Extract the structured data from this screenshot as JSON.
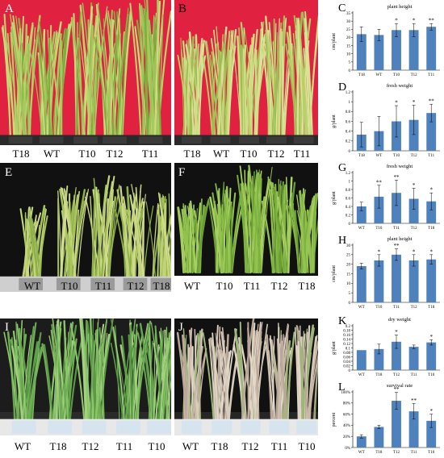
{
  "panels": {
    "A": {
      "letter": "A",
      "lanes": [
        "T18",
        "WT",
        "T10",
        "T12",
        "T11"
      ]
    },
    "B": {
      "letter": "B",
      "lanes": [
        "T18",
        "WT",
        "T10",
        "T12",
        "T11"
      ]
    },
    "E": {
      "letter": "E",
      "lanes": [
        "WT",
        "T10",
        "T11",
        "T12",
        "T18"
      ]
    },
    "F": {
      "letter": "F",
      "lanes": [
        "T10",
        "T11",
        "T12",
        "T18"
      ]
    },
    "F_first": {
      "lane": "WT"
    },
    "I": {
      "letter": "I",
      "lanes": [
        "WT",
        "T18",
        "T12",
        "T11",
        "T10"
      ]
    },
    "J": {
      "letter": "J",
      "lanes": [
        "WT",
        "T18",
        "T12",
        "T11",
        "T10"
      ]
    }
  },
  "colors": {
    "bar": "#4f81bd",
    "red_bg": "#e0213f",
    "dark_bg": "#111111",
    "leaf": "#8db84a"
  },
  "chart_data": [
    {
      "id": "C",
      "letter": "C",
      "type": "bar",
      "title": "plant height",
      "ylabel": "cm/plant",
      "categories": [
        "T18",
        "WT",
        "T10",
        "T12",
        "T11"
      ],
      "values": [
        22,
        21.5,
        24.5,
        24.5,
        26.5
      ],
      "errors": [
        4.5,
        3.5,
        4,
        4,
        2
      ],
      "sig": [
        "",
        "",
        "*",
        "*",
        "**"
      ],
      "ylim": [
        0,
        35
      ],
      "ticks": [
        0,
        5,
        10,
        15,
        20,
        25,
        30,
        35
      ]
    },
    {
      "id": "D",
      "letter": "D",
      "type": "bar",
      "title": "fresh weight",
      "ylabel": "g/plant",
      "categories": [
        "T18",
        "WT",
        "T10",
        "T12",
        "T11"
      ],
      "values": [
        0.33,
        0.4,
        0.6,
        0.63,
        0.77
      ],
      "errors": [
        0.25,
        0.3,
        0.32,
        0.3,
        0.18
      ],
      "sig": [
        "",
        "",
        "*",
        "*",
        "**"
      ],
      "ylim": [
        0,
        1.2
      ],
      "ticks": [
        0,
        0.2,
        0.4,
        0.6,
        0.8,
        1,
        1.2
      ]
    },
    {
      "id": "G",
      "letter": "G",
      "type": "bar",
      "title": "fresh weight",
      "ylabel": "g/plant",
      "categories": [
        "WT",
        "T10",
        "T11",
        "T12",
        "T18"
      ],
      "values": [
        0.4,
        0.63,
        0.72,
        0.58,
        0.52
      ],
      "errors": [
        0.1,
        0.27,
        0.3,
        0.25,
        0.2
      ],
      "sig": [
        "",
        "**",
        "**",
        "*",
        "*"
      ],
      "ylim": [
        0,
        1.2
      ],
      "ticks": [
        0,
        0.2,
        0.4,
        0.6,
        0.8,
        1,
        1.2
      ]
    },
    {
      "id": "H",
      "letter": "H",
      "type": "bar",
      "title": "plant height",
      "ylabel": "cm/plant",
      "categories": [
        "WT",
        "T10",
        "T11",
        "T12",
        "T18"
      ],
      "values": [
        19,
        22,
        25,
        22,
        22.5
      ],
      "errors": [
        1.5,
        3,
        3,
        3,
        2.5
      ],
      "sig": [
        "",
        "*",
        "**",
        "*",
        "*"
      ],
      "ylim": [
        0,
        30
      ],
      "ticks": [
        0,
        5,
        10,
        15,
        20,
        25,
        30
      ]
    },
    {
      "id": "K",
      "letter": "K",
      "type": "bar",
      "title": "dry weight",
      "ylabel": "g/plant",
      "categories": [
        "WT",
        "T18",
        "T12",
        "T11",
        "T10"
      ],
      "values": [
        0.09,
        0.095,
        0.128,
        0.105,
        0.125
      ],
      "errors": [
        0,
        0.022,
        0.03,
        0.008,
        0.012
      ],
      "sig": [
        "",
        "",
        "*",
        "",
        "*"
      ],
      "ylim": [
        0,
        0.2
      ],
      "ticks": [
        0,
        0.02,
        0.04,
        0.06,
        0.08,
        0.1,
        0.12,
        0.14,
        0.16,
        0.18,
        0.2
      ]
    },
    {
      "id": "L",
      "letter": "L",
      "type": "bar",
      "title": "survival rate",
      "ylabel": "percent",
      "categories": [
        "WT",
        "T18",
        "T12",
        "T11",
        "T10"
      ],
      "values": [
        20,
        37,
        84,
        65,
        48
      ],
      "errors": [
        3,
        3,
        15,
        14,
        12
      ],
      "sig": [
        "",
        "",
        "**",
        "**",
        "*"
      ],
      "ylim": [
        0,
        100
      ],
      "ticks": [
        0,
        20,
        40,
        60,
        80,
        100
      ],
      "tick_labels": [
        "0%",
        "20%",
        "40%",
        "60%",
        "80%",
        "100%"
      ]
    }
  ]
}
